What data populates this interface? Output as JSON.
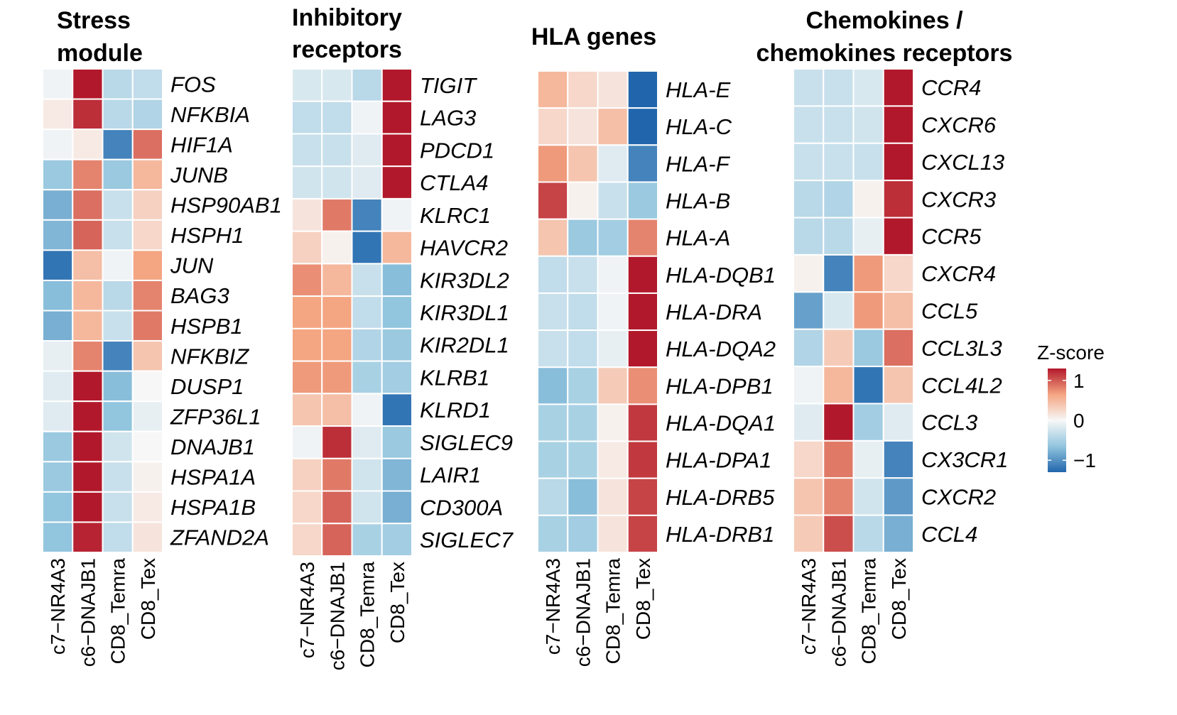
{
  "chart_data": {
    "type": "heatmap",
    "colors": {
      "low": "#2166ac",
      "mid": "#f7f7f7",
      "high": "#b2182b"
    },
    "value_range": [
      -1.3,
      1.3
    ],
    "legend": {
      "title": "Z-score",
      "ticks": [
        1,
        0,
        -1
      ],
      "tick_labels": [
        "1",
        "0",
        "−1"
      ],
      "placement": "right"
    },
    "panels": [
      {
        "title_lines": [
          "Stress",
          "module"
        ],
        "columns": [
          "c7−NR4A3",
          "c6−DNAJB1",
          "CD8_Temra",
          "CD8_Tex"
        ],
        "rows": [
          "FOS",
          "NFKBIA",
          "HIF1A",
          "JUNB",
          "HSP90AB1",
          "HSPH1",
          "JUN",
          "BAG3",
          "HSPB1",
          "NFKBIZ",
          "DUSP1",
          "ZFP36L1",
          "DNAJB1",
          "HSPA1A",
          "HSPA1B",
          "ZFAND2A"
        ],
        "values": [
          [
            -0.05,
            1.3,
            -0.4,
            -0.35
          ],
          [
            0.1,
            1.2,
            -0.4,
            -0.45
          ],
          [
            -0.05,
            0.1,
            -1.1,
            0.9
          ],
          [
            -0.6,
            0.8,
            -0.6,
            0.5
          ],
          [
            -0.8,
            0.9,
            -0.3,
            0.3
          ],
          [
            -0.75,
            0.95,
            -0.3,
            0.25
          ],
          [
            -1.2,
            0.45,
            -0.05,
            0.65
          ],
          [
            -0.7,
            0.5,
            -0.4,
            0.8
          ],
          [
            -0.8,
            0.5,
            -0.3,
            0.85
          ],
          [
            -0.1,
            0.8,
            -1.1,
            0.4
          ],
          [
            -0.15,
            1.3,
            -0.7,
            0.0
          ],
          [
            -0.15,
            1.3,
            -0.65,
            -0.1
          ],
          [
            -0.6,
            1.3,
            -0.25,
            0.0
          ],
          [
            -0.6,
            1.3,
            -0.3,
            0.05
          ],
          [
            -0.65,
            1.3,
            -0.3,
            0.1
          ],
          [
            -0.65,
            1.25,
            -0.35,
            0.15
          ]
        ]
      },
      {
        "title_lines": [
          "Inhibitory",
          "receptors"
        ],
        "columns": [
          "c7−NR4A3",
          "c6−DNAJB1",
          "CD8_Temra",
          "CD8_Tex"
        ],
        "rows": [
          "TIGIT",
          "LAG3",
          "PDCD1",
          "CTLA4",
          "KLRC1",
          "HAVCR2",
          "KIR3DL2",
          "KIR3DL1",
          "KIR2DL1",
          "KLRB1",
          "KLRD1",
          "SIGLEC9",
          "LAIR1",
          "CD300A",
          "SIGLEC7"
        ],
        "values": [
          [
            -0.2,
            -0.2,
            -0.4,
            1.3
          ],
          [
            -0.35,
            -0.35,
            -0.05,
            1.3
          ],
          [
            -0.3,
            -0.3,
            -0.15,
            1.3
          ],
          [
            -0.25,
            -0.25,
            -0.15,
            1.3
          ],
          [
            0.15,
            0.85,
            -1.1,
            -0.05
          ],
          [
            0.3,
            0.05,
            -1.2,
            0.5
          ],
          [
            0.75,
            0.5,
            -0.3,
            -0.7
          ],
          [
            0.65,
            0.65,
            -0.35,
            -0.65
          ],
          [
            0.65,
            0.65,
            -0.45,
            -0.6
          ],
          [
            0.7,
            0.7,
            -0.5,
            -0.55
          ],
          [
            0.4,
            0.45,
            -0.05,
            -1.2
          ],
          [
            -0.05,
            1.2,
            -0.15,
            -0.6
          ],
          [
            0.3,
            0.85,
            -0.25,
            -0.75
          ],
          [
            0.25,
            0.95,
            -0.25,
            -0.8
          ],
          [
            0.25,
            0.95,
            -0.5,
            -0.55
          ]
        ]
      },
      {
        "title_lines": [
          "HLA genes"
        ],
        "columns": [
          "c7−NR4A3",
          "c6−DNAJB1",
          "CD8_Temra",
          "CD8_Tex"
        ],
        "rows": [
          "HLA-E",
          "HLA-C",
          "HLA-F",
          "HLA-B",
          "HLA-A",
          "HLA-DQB1",
          "HLA-DRA",
          "HLA-DQA2",
          "HLA-DPB1",
          "HLA-DQA1",
          "HLA-DPA1",
          "HLA-DRB5",
          "HLA-DRB1"
        ],
        "values": [
          [
            0.5,
            0.25,
            0.15,
            -1.3
          ],
          [
            0.25,
            0.15,
            0.45,
            -1.3
          ],
          [
            0.7,
            0.4,
            -0.15,
            -1.1
          ],
          [
            1.1,
            0.05,
            -0.3,
            -0.6
          ],
          [
            0.4,
            -0.6,
            -0.55,
            0.8
          ],
          [
            -0.35,
            -0.3,
            -0.05,
            1.3
          ],
          [
            -0.3,
            -0.35,
            -0.05,
            1.3
          ],
          [
            -0.3,
            -0.35,
            -0.1,
            1.3
          ],
          [
            -0.7,
            -0.5,
            0.35,
            0.75
          ],
          [
            -0.5,
            -0.5,
            0.05,
            1.15
          ],
          [
            -0.5,
            -0.5,
            0.1,
            1.15
          ],
          [
            -0.4,
            -0.7,
            0.15,
            1.1
          ],
          [
            -0.5,
            -0.55,
            0.15,
            1.1
          ]
        ]
      },
      {
        "title_lines": [
          "Chemokines /",
          "chemokines receptors"
        ],
        "columns": [
          "c7−NR4A3",
          "c6−DNAJB1",
          "CD8_Temra",
          "CD8_Tex"
        ],
        "rows": [
          "CCR4",
          "CXCR6",
          "CXCL13",
          "CXCR3",
          "CCR5",
          "CXCR4",
          "CCL5",
          "CCL3L3",
          "CCL4L2",
          "CCL3",
          "CX3CR1",
          "CXCR2",
          "CCL4"
        ],
        "values": [
          [
            -0.3,
            -0.3,
            -0.2,
            1.3
          ],
          [
            -0.3,
            -0.3,
            -0.25,
            1.3
          ],
          [
            -0.3,
            -0.3,
            -0.3,
            1.3
          ],
          [
            -0.4,
            -0.45,
            0.05,
            1.2
          ],
          [
            -0.4,
            -0.4,
            -0.1,
            1.3
          ],
          [
            0.05,
            -1.1,
            0.7,
            0.25
          ],
          [
            -0.9,
            -0.2,
            0.7,
            0.45
          ],
          [
            -0.45,
            0.35,
            -0.6,
            0.9
          ],
          [
            -0.05,
            0.5,
            -1.2,
            0.4
          ],
          [
            -0.15,
            1.3,
            -0.55,
            -0.15
          ],
          [
            0.25,
            0.85,
            -0.1,
            -1.1
          ],
          [
            0.4,
            0.8,
            -0.25,
            -0.95
          ],
          [
            0.35,
            1.05,
            -0.4,
            -0.8
          ]
        ]
      }
    ]
  }
}
